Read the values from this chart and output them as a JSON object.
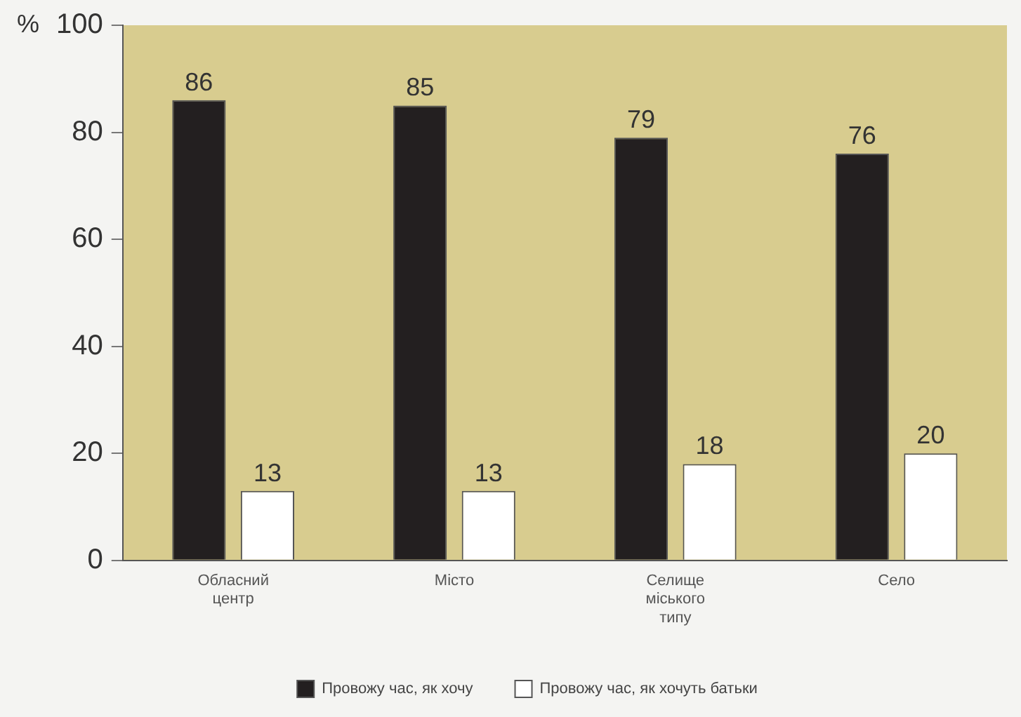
{
  "chart_data": {
    "type": "bar",
    "ylabel": "%",
    "categories": [
      "Обласний центр",
      "Місто",
      "Селище міського типу",
      "Село"
    ],
    "series": [
      {
        "name": "Провожу час, як хочу",
        "color": "#231f20",
        "values": [
          86,
          85,
          79,
          76
        ]
      },
      {
        "name": "Провожу час, як хочуть батьки",
        "color": "#ffffff",
        "values": [
          13,
          13,
          18,
          20
        ]
      }
    ],
    "ylim": [
      0,
      100
    ],
    "yticks": [
      0,
      20,
      40,
      60,
      80,
      100
    ],
    "grid": false,
    "legend": "bottom",
    "data_labels": true
  }
}
